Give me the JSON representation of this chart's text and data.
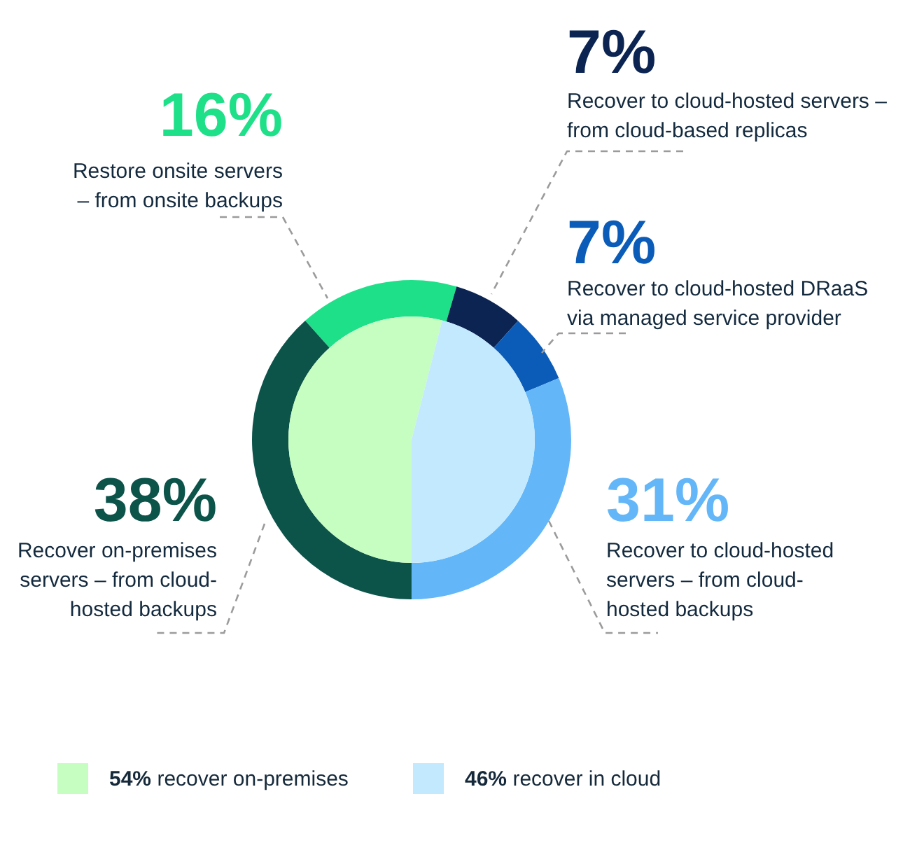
{
  "chart_data": [
    {
      "type": "donut",
      "categories": [
        "Restore onsite servers – from onsite backups",
        "Recover to cloud-hosted servers – from cloud-based replicas",
        "Recover to cloud-hosted DRaaS via managed service provider",
        "Recover to cloud-hosted servers – from cloud-hosted backups",
        "Recover on-premises servers – from cloud-hosted backups"
      ],
      "values": [
        16,
        7,
        7,
        31,
        38
      ],
      "colors": [
        "#1ee088",
        "#0b2452",
        "#0b5cb8",
        "#63b6f7",
        "#0c534a"
      ],
      "value_labels": [
        "16%",
        "7%",
        "7%",
        "31%",
        "38%"
      ]
    },
    {
      "type": "pie",
      "categories": [
        "54% recover on-premises",
        "46% recover in cloud"
      ],
      "values": [
        54,
        46
      ],
      "colors": [
        "#c6fdc1",
        "#c2e9fd"
      ],
      "legend": "bottom"
    }
  ]
}
